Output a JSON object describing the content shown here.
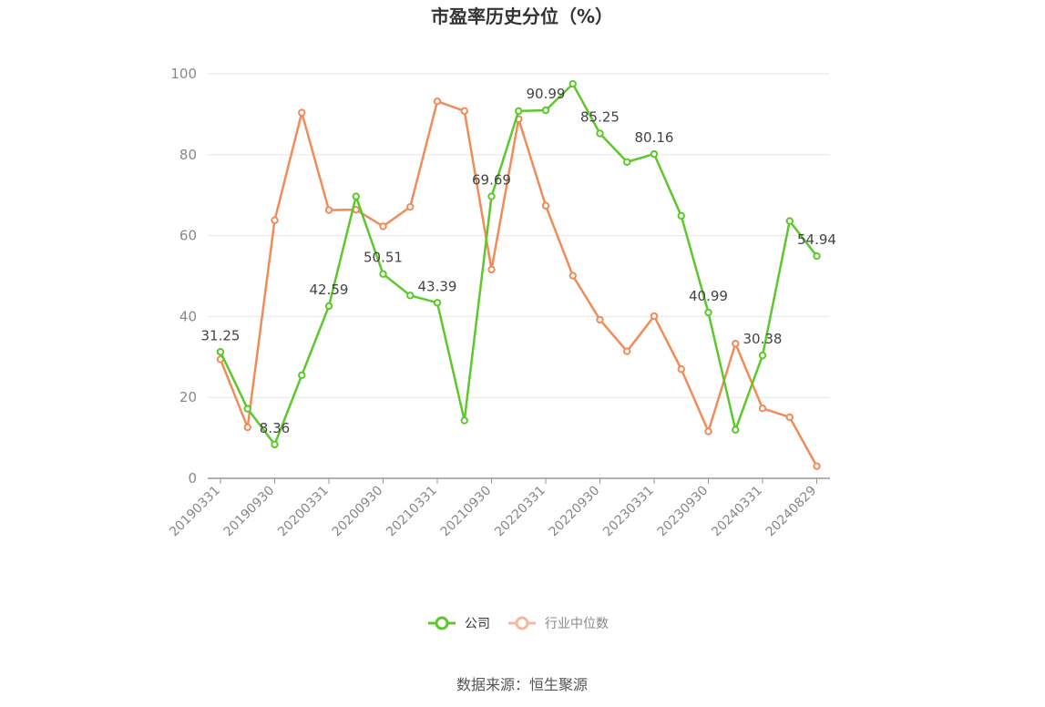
{
  "chart_data": {
    "type": "line",
    "title": "市盈率历史分位（%）",
    "ylim": [
      0,
      100
    ],
    "yticks": [
      0,
      20,
      40,
      60,
      80,
      100
    ],
    "x": [
      "20190331",
      "20190630",
      "20190930",
      "20191231",
      "20200331",
      "20200630",
      "20200930",
      "20201231",
      "20210331",
      "20210630",
      "20210930",
      "20211231",
      "20220331",
      "20220630",
      "20220930",
      "20221231",
      "20230331",
      "20230630",
      "20230930",
      "20231231",
      "20240331",
      "20240630",
      "20240829"
    ],
    "x_tick_labels": [
      "20190331",
      "20190930",
      "20200331",
      "20200930",
      "20210331",
      "20210930",
      "20220331",
      "20220930",
      "20230331",
      "20230930",
      "20240331",
      "20240829"
    ],
    "series": [
      {
        "name": "公司",
        "color": "#5cc82c",
        "values": [
          31.25,
          17.2,
          8.36,
          25.5,
          42.59,
          69.69,
          50.51,
          45.2,
          43.39,
          14.3,
          69.69,
          90.8,
          90.99,
          97.5,
          85.25,
          78.2,
          80.16,
          64.9,
          40.99,
          12.0,
          30.38,
          63.6,
          54.94
        ],
        "labels": [
          "31.25",
          null,
          "8.36",
          null,
          "42.59",
          null,
          "50.51",
          null,
          "43.39",
          null,
          "69.69",
          null,
          "90.99",
          null,
          "85.25",
          null,
          "80.16",
          null,
          "40.99",
          null,
          "30.38",
          null,
          "54.94"
        ]
      },
      {
        "name": "行业中位数",
        "color": "#f08c5a",
        "values": [
          29.4,
          12.6,
          63.8,
          90.4,
          66.3,
          66.4,
          62.3,
          67.1,
          93.2,
          90.8,
          51.6,
          88.8,
          67.4,
          50.1,
          39.2,
          31.4,
          40.1,
          27.0,
          11.6,
          33.3,
          17.3,
          15.1,
          3.0
        ]
      }
    ],
    "legend": {
      "position": "bottom",
      "items": [
        {
          "label": "公司",
          "color": "#5cc82c",
          "text_color": "#333333"
        },
        {
          "label": "行业中位数",
          "color": "#f6b9a0",
          "text_color": "#888888"
        }
      ]
    },
    "source": "数据来源：恒生聚源"
  }
}
